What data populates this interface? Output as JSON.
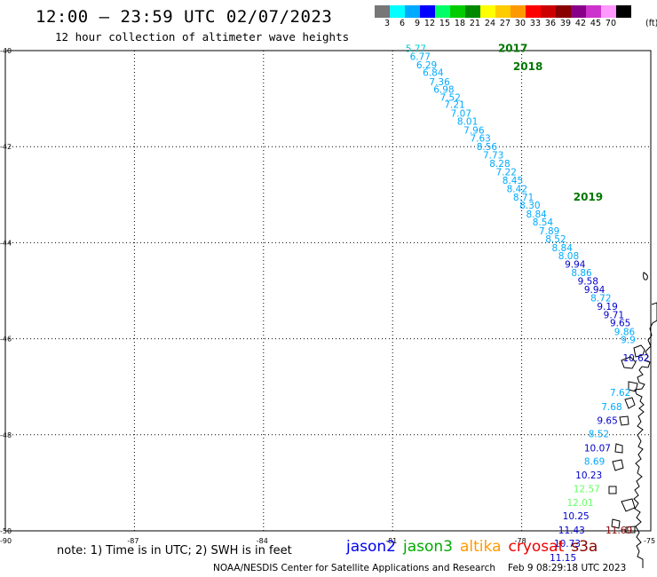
{
  "title": "12:00 – 23:59 UTC 02/07/2023",
  "subtitle": "12 hour collection of altimeter wave heights",
  "legend": {
    "colors": [
      "#777777",
      "#00ffff",
      "#00aaff",
      "#0000ff",
      "#00ff66",
      "#00cc00",
      "#008800",
      "#ffff00",
      "#ffcc00",
      "#ff9900",
      "#ff0000",
      "#cc0000",
      "#880000",
      "#880088",
      "#cc33cc",
      "#ff99ff",
      "#000000"
    ],
    "labels": [
      "3",
      "6",
      "9",
      "12",
      "15",
      "18",
      "21",
      "24",
      "27",
      "30",
      "33",
      "36",
      "39",
      "42",
      "45",
      "70"
    ],
    "unit": "(ft)"
  },
  "map": {
    "lon_range": [
      -90,
      -75
    ],
    "lat_range": [
      -50,
      -40
    ],
    "lon_ticks": [
      "-90",
      "-87",
      "-84",
      "-81",
      "-78",
      "-75"
    ],
    "lat_ticks": [
      "-40",
      "-42",
      "-44",
      "-46",
      "-48",
      "-50"
    ]
  },
  "year_labels": [
    {
      "text": "2017",
      "lon": -78.55,
      "lat": -39.95
    },
    {
      "text": "2018",
      "lon": -78.2,
      "lat": -40.33
    },
    {
      "text": "2019",
      "lon": -76.8,
      "lat": -43.05
    }
  ],
  "observations": [
    {
      "lon": -80.7,
      "lat": -39.95,
      "v": "5.77",
      "c": "#00cccc"
    },
    {
      "lon": -80.6,
      "lat": -40.12,
      "v": "6.77",
      "c": "#00aaff"
    },
    {
      "lon": -80.45,
      "lat": -40.3,
      "v": "6.29",
      "c": "#00aaff"
    },
    {
      "lon": -80.3,
      "lat": -40.45,
      "v": "6.84",
      "c": "#00aaff"
    },
    {
      "lon": -80.15,
      "lat": -40.65,
      "v": "7.36",
      "c": "#00aaff"
    },
    {
      "lon": -80.05,
      "lat": -40.8,
      "v": "6.98",
      "c": "#00aaff"
    },
    {
      "lon": -79.9,
      "lat": -40.97,
      "v": "7.52",
      "c": "#00aaff"
    },
    {
      "lon": -79.8,
      "lat": -41.12,
      "v": "7.21",
      "c": "#00aaff"
    },
    {
      "lon": -79.65,
      "lat": -41.3,
      "v": "7.07",
      "c": "#00aaff"
    },
    {
      "lon": -79.5,
      "lat": -41.47,
      "v": "8.01",
      "c": "#00aaff"
    },
    {
      "lon": -79.35,
      "lat": -41.65,
      "v": "7.96",
      "c": "#00aaff"
    },
    {
      "lon": -79.2,
      "lat": -41.82,
      "v": "7.63",
      "c": "#00aaff"
    },
    {
      "lon": -79.05,
      "lat": -42.0,
      "v": "8.56",
      "c": "#00aaff"
    },
    {
      "lon": -78.9,
      "lat": -42.17,
      "v": "7.73",
      "c": "#00aaff"
    },
    {
      "lon": -78.75,
      "lat": -42.35,
      "v": "8.28",
      "c": "#00aaff"
    },
    {
      "lon": -78.6,
      "lat": -42.52,
      "v": "7.22",
      "c": "#00aaff"
    },
    {
      "lon": -78.45,
      "lat": -42.7,
      "v": "8.45",
      "c": "#00aaff"
    },
    {
      "lon": -78.35,
      "lat": -42.87,
      "v": "8.42",
      "c": "#00aaff"
    },
    {
      "lon": -78.2,
      "lat": -43.05,
      "v": "8.71",
      "c": "#00aaff"
    },
    {
      "lon": -78.05,
      "lat": -43.22,
      "v": "8.30",
      "c": "#00aaff"
    },
    {
      "lon": -77.9,
      "lat": -43.4,
      "v": "8.84",
      "c": "#00aaff"
    },
    {
      "lon": -77.75,
      "lat": -43.57,
      "v": "8.54",
      "c": "#00aaff"
    },
    {
      "lon": -77.6,
      "lat": -43.75,
      "v": "7.89",
      "c": "#00aaff"
    },
    {
      "lon": -77.45,
      "lat": -43.92,
      "v": "8.52",
      "c": "#00aaff"
    },
    {
      "lon": -77.3,
      "lat": -44.1,
      "v": "8.84",
      "c": "#00aaff"
    },
    {
      "lon": -77.15,
      "lat": -44.27,
      "v": "8.08",
      "c": "#00aaff"
    },
    {
      "lon": -77.0,
      "lat": -44.45,
      "v": "9.94",
      "c": "#0000cc"
    },
    {
      "lon": -76.85,
      "lat": -44.62,
      "v": "8.86",
      "c": "#00aaff"
    },
    {
      "lon": -76.7,
      "lat": -44.8,
      "v": "9.58",
      "c": "#0000cc"
    },
    {
      "lon": -76.55,
      "lat": -44.97,
      "v": "9.94",
      "c": "#0000cc"
    },
    {
      "lon": -76.4,
      "lat": -45.15,
      "v": "8.72",
      "c": "#00aaff"
    },
    {
      "lon": -76.25,
      "lat": -45.32,
      "v": "9.19",
      "c": "#0000cc"
    },
    {
      "lon": -76.1,
      "lat": -45.5,
      "v": "9.71",
      "c": "#0000cc"
    },
    {
      "lon": -75.95,
      "lat": -45.67,
      "v": "9.65",
      "c": "#0000cc"
    },
    {
      "lon": -75.85,
      "lat": -45.85,
      "v": "9.86",
      "c": "#00aaff"
    },
    {
      "lon": -75.7,
      "lat": -46.02,
      "v": "9.9",
      "c": "#00aaff"
    },
    {
      "lon": -75.65,
      "lat": -46.4,
      "v": "10.62",
      "c": "#0000cc"
    },
    {
      "lon": -75.95,
      "lat": -47.12,
      "v": "7.62",
      "c": "#00aaff"
    },
    {
      "lon": -76.15,
      "lat": -47.41,
      "v": "7.68",
      "c": "#00aaff"
    },
    {
      "lon": -76.25,
      "lat": -47.7,
      "v": "9.65",
      "c": "#0000cc"
    },
    {
      "lon": -76.45,
      "lat": -47.98,
      "v": "8.52",
      "c": "#00aaff"
    },
    {
      "lon": -76.55,
      "lat": -48.27,
      "v": "10.07",
      "c": "#0000cc"
    },
    {
      "lon": -76.55,
      "lat": -48.55,
      "v": "8.69",
      "c": "#00aaff"
    },
    {
      "lon": -76.75,
      "lat": -48.84,
      "v": "10.23",
      "c": "#0000cc"
    },
    {
      "lon": -76.8,
      "lat": -49.12,
      "v": "12.57",
      "c": "#66ff66"
    },
    {
      "lon": -76.95,
      "lat": -49.41,
      "v": "12.01",
      "c": "#66ff66"
    },
    {
      "lon": -77.05,
      "lat": -49.69,
      "v": "10.25",
      "c": "#0000cc"
    },
    {
      "lon": -77.15,
      "lat": -49.98,
      "v": "11.43",
      "c": "#0000cc"
    },
    {
      "lon": -76.05,
      "lat": -49.98,
      "v": "11.69",
      "c": "#880000"
    },
    {
      "lon": -77.25,
      "lat": -50.26,
      "v": "10.73",
      "c": "#0000cc"
    },
    {
      "lon": -77.35,
      "lat": -50.55,
      "v": "11.15",
      "c": "#0000cc"
    }
  ],
  "note": "note: 1) Time is in UTC; 2) SWH is in feet",
  "satellites": [
    {
      "name": "jason2",
      "color": "#0000ee"
    },
    {
      "name": "jason3",
      "color": "#00aa00"
    },
    {
      "name": "altika",
      "color": "#ff9900"
    },
    {
      "name": "cryosat",
      "color": "#ee0000"
    },
    {
      "name": "s3a",
      "color": "#880000"
    }
  ],
  "credit": "NOAA/NESDIS Center for Satellite Applications and Research",
  "timestamp": "Feb  9 08:29:18 UTC 2023"
}
